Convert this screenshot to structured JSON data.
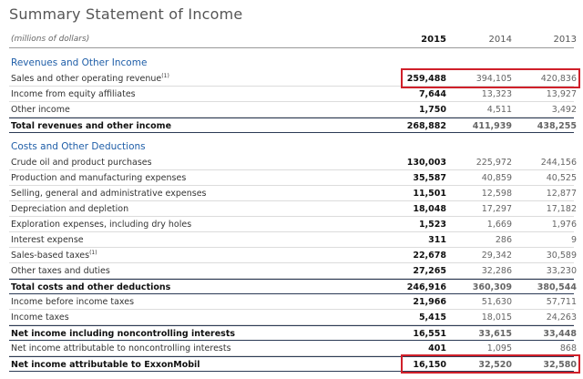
{
  "header": {
    "title": "Summary Statement of Income",
    "units": "(millions of dollars)",
    "years": [
      "2015",
      "2014",
      "2013"
    ]
  },
  "sections": [
    {
      "heading": "Revenues and Other Income",
      "rows": [
        {
          "label": "Sales and other operating revenue",
          "note": "(1)",
          "values": [
            "259,488",
            "394,105",
            "420,836"
          ]
        },
        {
          "label": "Income from equity affiliates",
          "values": [
            "7,644",
            "13,323",
            "13,927"
          ]
        },
        {
          "label": "Other income",
          "values": [
            "1,750",
            "4,511",
            "3,492"
          ]
        },
        {
          "label": "Total revenues and other income",
          "values": [
            "268,882",
            "411,939",
            "438,255"
          ],
          "bold": true
        }
      ]
    },
    {
      "heading": "Costs and Other Deductions",
      "rows": [
        {
          "label": "Crude oil and product purchases",
          "values": [
            "130,003",
            "225,972",
            "244,156"
          ]
        },
        {
          "label": "Production and manufacturing expenses",
          "values": [
            "35,587",
            "40,859",
            "40,525"
          ]
        },
        {
          "label": "Selling, general and administrative expenses",
          "values": [
            "11,501",
            "12,598",
            "12,877"
          ]
        },
        {
          "label": "Depreciation and depletion",
          "values": [
            "18,048",
            "17,297",
            "17,182"
          ]
        },
        {
          "label": "Exploration expenses, including dry holes",
          "values": [
            "1,523",
            "1,669",
            "1,976"
          ]
        },
        {
          "label": "Interest expense",
          "values": [
            "311",
            "286",
            "9"
          ]
        },
        {
          "label": "Sales-based taxes",
          "note": "(1)",
          "values": [
            "22,678",
            "29,342",
            "30,589"
          ]
        },
        {
          "label": "Other taxes and duties",
          "values": [
            "27,265",
            "32,286",
            "33,230"
          ]
        },
        {
          "label": "Total costs and other deductions",
          "values": [
            "246,916",
            "360,309",
            "380,544"
          ],
          "bold": true
        },
        {
          "label": "Income before income taxes",
          "values": [
            "21,966",
            "51,630",
            "57,711"
          ]
        },
        {
          "label": "Income taxes",
          "values": [
            "5,415",
            "18,015",
            "24,263"
          ]
        },
        {
          "label": "Net income including noncontrolling interests",
          "values": [
            "16,551",
            "33,615",
            "33,448"
          ],
          "bold": true
        },
        {
          "label": "Net income attributable to noncontrolling interests",
          "values": [
            "401",
            "1,095",
            "868"
          ]
        },
        {
          "label": "Net income attributable to ExxonMobil",
          "values": [
            "16,150",
            "32,520",
            "32,580"
          ],
          "bold": true
        }
      ]
    }
  ]
}
